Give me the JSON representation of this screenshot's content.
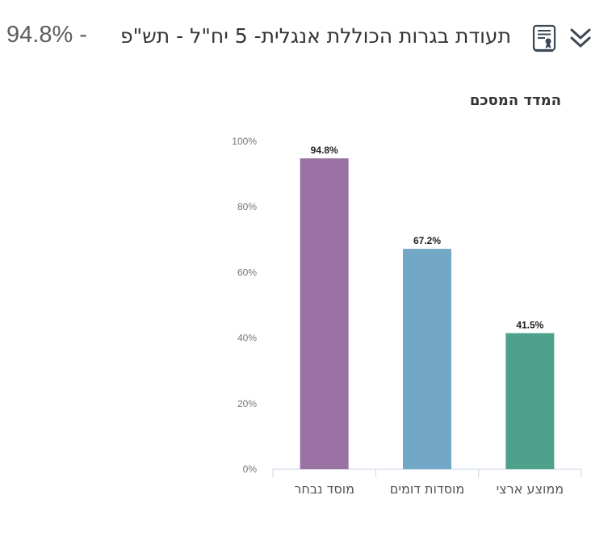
{
  "header": {
    "title_pct": "94.8% -",
    "title_main": "תעודת בגרות הכוללת אנגלית- 5 יח\"ל - תש\"פ",
    "icon": "certificate-scroll-icon",
    "expand_icon": "chevron-double-down-icon"
  },
  "chart_data": {
    "type": "bar",
    "title": "המדד המסכם",
    "categories": [
      "מוסד נבחר",
      "מוסדות דומים",
      "ממוצע ארצי"
    ],
    "values": [
      94.8,
      67.2,
      41.5
    ],
    "value_labels": [
      "94.8%",
      "67.2%",
      "41.5%"
    ],
    "colors": [
      "#9a71a3",
      "#72a7c6",
      "#4ea28c"
    ],
    "ylim": [
      0,
      100
    ],
    "yticks": [
      "0%",
      "20%",
      "40%",
      "60%",
      "80%",
      "100%"
    ],
    "grid": false,
    "legend": "none"
  }
}
